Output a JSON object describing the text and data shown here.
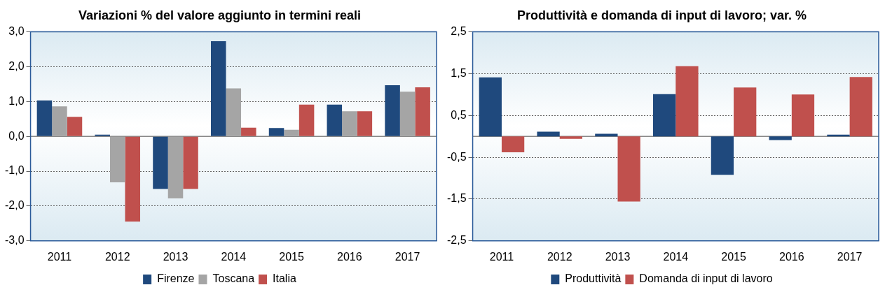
{
  "chart_data": [
    {
      "type": "bar",
      "title": "Variazioni % del valore aggiunto in termini reali",
      "categories": [
        "2011",
        "2012",
        "2013",
        "2014",
        "2015",
        "2016",
        "2017"
      ],
      "series": [
        {
          "name": "Firenze",
          "color": "#1f497d",
          "values": [
            1.03,
            0.05,
            -1.51,
            2.73,
            0.24,
            0.91,
            1.47
          ]
        },
        {
          "name": "Toscana",
          "color": "#a5a5a5",
          "values": [
            0.86,
            -1.32,
            -1.78,
            1.38,
            0.19,
            0.72,
            1.28
          ]
        },
        {
          "name": "Italia",
          "color": "#c0504d",
          "values": [
            0.56,
            -2.45,
            -1.51,
            0.25,
            0.91,
            0.72,
            1.41
          ]
        }
      ],
      "ylim": [
        -3,
        3
      ],
      "yticks": [
        {
          "value": -3,
          "label": "-3,0"
        },
        {
          "value": -2,
          "label": "-2,0"
        },
        {
          "value": -1,
          "label": "-1,0"
        },
        {
          "value": 0,
          "label": "0,0"
        },
        {
          "value": 1,
          "label": "1,0"
        },
        {
          "value": 2,
          "label": "2,0"
        },
        {
          "value": 3,
          "label": "3,0"
        }
      ],
      "grid": "y",
      "legend": "bottom"
    },
    {
      "type": "bar",
      "title": "Produttività e domanda di input di lavoro; var. %",
      "categories": [
        "2011",
        "2012",
        "2013",
        "2014",
        "2015",
        "2016",
        "2017"
      ],
      "series": [
        {
          "name": "Produttività",
          "color": "#1f497d",
          "values": [
            1.41,
            0.11,
            0.06,
            1.01,
            -0.92,
            -0.09,
            0.04
          ]
        },
        {
          "name": "Domanda di input di lavoro",
          "color": "#c0504d",
          "values": [
            -0.38,
            -0.06,
            -1.56,
            1.68,
            1.17,
            1.0,
            1.42
          ]
        }
      ],
      "ylim": [
        -2.5,
        2.5
      ],
      "yticks": [
        {
          "value": -2.5,
          "label": "-2,5"
        },
        {
          "value": -1.5,
          "label": "-1,5"
        },
        {
          "value": -0.5,
          "label": "-0,5"
        },
        {
          "value": 0.5,
          "label": "0,5"
        },
        {
          "value": 1.5,
          "label": "1,5"
        },
        {
          "value": 2.5,
          "label": "2,5"
        }
      ],
      "grid": "y",
      "legend": "bottom"
    }
  ]
}
